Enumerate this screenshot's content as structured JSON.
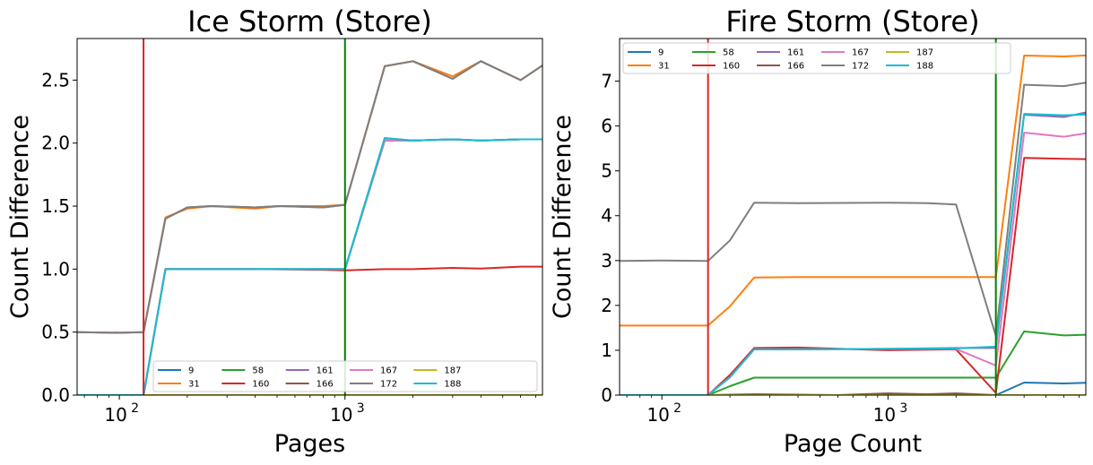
{
  "series_colors": {
    "9": "#1f77b4",
    "31": "#ff7f0e",
    "58": "#2ca02c",
    "160": "#d62728",
    "161": "#9467bd",
    "166": "#8c564b",
    "167": "#e377c2",
    "172": "#7f7f7f",
    "187": "#bcbd22",
    "188": "#17becf"
  },
  "chart_data": [
    {
      "type": "line",
      "title": "Ice Storm (Store)",
      "xlabel": "Pages",
      "ylabel": "Count Difference",
      "xscale": "log",
      "xlim": [
        65,
        7500
      ],
      "ylim": [
        0,
        2.83
      ],
      "x_tick_labels": [
        "10",
        "10"
      ],
      "x_tick_exponents": [
        "2",
        "3"
      ],
      "y_ticks": [
        "0.0",
        "0.5",
        "1.0",
        "1.5",
        "2.0",
        "2.5"
      ],
      "vlines": [
        {
          "x": 128,
          "color": "#d62728"
        },
        {
          "x": 1000,
          "color": "#008000"
        }
      ],
      "legend": {
        "placement": "lower right",
        "columns": 6
      },
      "series": [
        {
          "name": "9",
          "x": [
            64,
            100,
            128,
            160,
            1000,
            1500,
            2000,
            3000,
            4000,
            6000,
            8000
          ],
          "y": [
            0,
            0,
            0,
            1.0,
            1.0,
            2.04,
            2.02,
            2.03,
            2.02,
            2.03,
            2.03
          ]
        },
        {
          "name": "31",
          "x": [
            64,
            100,
            128,
            160,
            200,
            256,
            400,
            512,
            800,
            1000,
            1500,
            2000,
            3000,
            4000,
            6000,
            8000
          ],
          "y": [
            0.5,
            0.495,
            0.5,
            1.41,
            1.48,
            1.5,
            1.48,
            1.5,
            1.5,
            1.51,
            2.61,
            2.65,
            2.53,
            2.65,
            2.5,
            2.65
          ]
        },
        {
          "name": "58",
          "x": [
            64,
            100,
            128,
            160,
            1000,
            1500,
            2000,
            3000,
            4000,
            6000,
            8000
          ],
          "y": [
            0,
            0,
            0,
            1.0,
            1.0,
            2.02,
            2.02,
            2.03,
            2.02,
            2.03,
            2.03
          ]
        },
        {
          "name": "160",
          "x": [
            64,
            100,
            128,
            160,
            400,
            800,
            1000,
            1500,
            2000,
            3000,
            4000,
            6000,
            8000
          ],
          "y": [
            0,
            0,
            0,
            1.0,
            1.0,
            0.995,
            0.99,
            1.0,
            1.0,
            1.01,
            1.005,
            1.02,
            1.02
          ]
        },
        {
          "name": "161",
          "x": [
            64,
            100,
            128,
            160,
            1000,
            1500,
            2000,
            3000,
            4000,
            6000,
            8000
          ],
          "y": [
            0,
            0,
            0,
            1.0,
            1.0,
            2.02,
            2.02,
            2.03,
            2.02,
            2.03,
            2.03
          ]
        },
        {
          "name": "166",
          "x": [
            64,
            100,
            128,
            160,
            200,
            256,
            400,
            512,
            800,
            1000,
            1500,
            2000,
            3000,
            4000,
            6000,
            8000
          ],
          "y": [
            0.5,
            0.495,
            0.5,
            1.4,
            1.49,
            1.5,
            1.49,
            1.5,
            1.49,
            1.51,
            2.61,
            2.65,
            2.51,
            2.65,
            2.5,
            2.65
          ]
        },
        {
          "name": "167",
          "x": [
            64,
            100,
            128,
            160,
            1000,
            1500,
            2000,
            3000,
            4000,
            6000,
            8000
          ],
          "y": [
            0,
            0,
            0,
            1.0,
            1.0,
            2.02,
            2.02,
            2.03,
            2.02,
            2.03,
            2.03
          ]
        },
        {
          "name": "172",
          "x": [
            64,
            100,
            128,
            160,
            200,
            256,
            400,
            512,
            800,
            1000,
            1500,
            2000,
            3000,
            4000,
            6000,
            8000
          ],
          "y": [
            0.5,
            0.495,
            0.5,
            1.4,
            1.49,
            1.5,
            1.49,
            1.5,
            1.49,
            1.51,
            2.61,
            2.65,
            2.51,
            2.65,
            2.5,
            2.65
          ]
        },
        {
          "name": "187",
          "x": [
            64,
            100,
            128,
            160,
            1000,
            1500,
            2000,
            3000,
            4000,
            6000,
            8000
          ],
          "y": [
            0,
            0,
            0,
            0,
            0,
            0,
            0,
            0,
            0,
            0,
            0
          ]
        },
        {
          "name": "188",
          "x": [
            64,
            100,
            128,
            160,
            1000,
            1500,
            2000,
            3000,
            4000,
            6000,
            8000
          ],
          "y": [
            0,
            0,
            0,
            1.0,
            1.0,
            2.04,
            2.02,
            2.03,
            2.02,
            2.03,
            2.03
          ]
        }
      ]
    },
    {
      "type": "line",
      "title": "Fire Storm (Store)",
      "xlabel": "Page Count",
      "ylabel": "Count Difference",
      "xscale": "log",
      "xlim": [
        65,
        7500
      ],
      "ylim": [
        0,
        7.95
      ],
      "x_tick_labels": [
        "10",
        "10"
      ],
      "x_tick_exponents": [
        "2",
        "3"
      ],
      "y_ticks": [
        "0",
        "1",
        "2",
        "3",
        "4",
        "5",
        "6",
        "7"
      ],
      "vlines": [
        {
          "x": 160,
          "color": "#d62728"
        },
        {
          "x": 3000,
          "color": "#008000"
        }
      ],
      "legend": {
        "placement": "upper left",
        "columns": 6
      },
      "series": [
        {
          "name": "9",
          "x": [
            64,
            160,
            3000,
            4000,
            6000,
            8000
          ],
          "y": [
            0,
            0,
            0,
            0.28,
            0.26,
            0.28
          ]
        },
        {
          "name": "31",
          "x": [
            64,
            100,
            160,
            200,
            256,
            400,
            1000,
            2000,
            3000,
            4000,
            6000,
            8000
          ],
          "y": [
            1.55,
            1.55,
            1.55,
            1.98,
            2.62,
            2.63,
            2.63,
            2.63,
            2.63,
            7.57,
            7.55,
            7.58
          ]
        },
        {
          "name": "58",
          "x": [
            64,
            160,
            200,
            256,
            400,
            1000,
            2000,
            3000,
            4000,
            6000,
            8000
          ],
          "y": [
            0,
            0,
            0.2,
            0.39,
            0.39,
            0.39,
            0.39,
            0.39,
            1.42,
            1.33,
            1.35
          ]
        },
        {
          "name": "160",
          "x": [
            64,
            160,
            200,
            256,
            400,
            1000,
            2000,
            3000,
            4000,
            6000,
            8000
          ],
          "y": [
            0,
            0,
            0.45,
            1.05,
            1.06,
            1.0,
            1.02,
            0.05,
            5.29,
            5.27,
            5.26
          ]
        },
        {
          "name": "161",
          "x": [
            64,
            160,
            200,
            256,
            400,
            1000,
            2000,
            3000,
            4000,
            6000,
            8000
          ],
          "y": [
            0,
            0,
            0.4,
            1.02,
            1.02,
            1.03,
            1.05,
            1.05,
            6.25,
            6.2,
            6.33
          ]
        },
        {
          "name": "166",
          "x": [
            64,
            160,
            256,
            400,
            600,
            1000,
            1500,
            2000,
            3000,
            4000,
            6000,
            8000
          ],
          "y": [
            0,
            0,
            0.02,
            0.01,
            0.0,
            0.04,
            0.02,
            0.04,
            0,
            0,
            0,
            0
          ]
        },
        {
          "name": "167",
          "x": [
            64,
            160,
            200,
            256,
            400,
            1000,
            2000,
            3000,
            4000,
            6000,
            8000
          ],
          "y": [
            0,
            0,
            0.4,
            1.02,
            1.02,
            1.03,
            1.03,
            0.66,
            5.85,
            5.76,
            5.86
          ]
        },
        {
          "name": "172",
          "x": [
            64,
            100,
            160,
            200,
            256,
            400,
            1000,
            1500,
            2000,
            3000,
            4000,
            6000,
            8000
          ],
          "y": [
            2.99,
            3.0,
            2.99,
            3.45,
            4.29,
            4.28,
            4.29,
            4.28,
            4.25,
            1.32,
            6.92,
            6.89,
            6.99
          ]
        },
        {
          "name": "187",
          "x": [
            64,
            160,
            3000,
            4000,
            6000,
            8000
          ],
          "y": [
            0,
            0,
            0,
            0,
            0,
            0
          ]
        },
        {
          "name": "188",
          "x": [
            64,
            160,
            200,
            256,
            400,
            1000,
            2000,
            3000,
            4000,
            6000,
            8000
          ],
          "y": [
            0,
            0,
            0.4,
            1.02,
            1.02,
            1.03,
            1.04,
            1.08,
            6.27,
            6.24,
            6.26
          ]
        }
      ]
    }
  ]
}
